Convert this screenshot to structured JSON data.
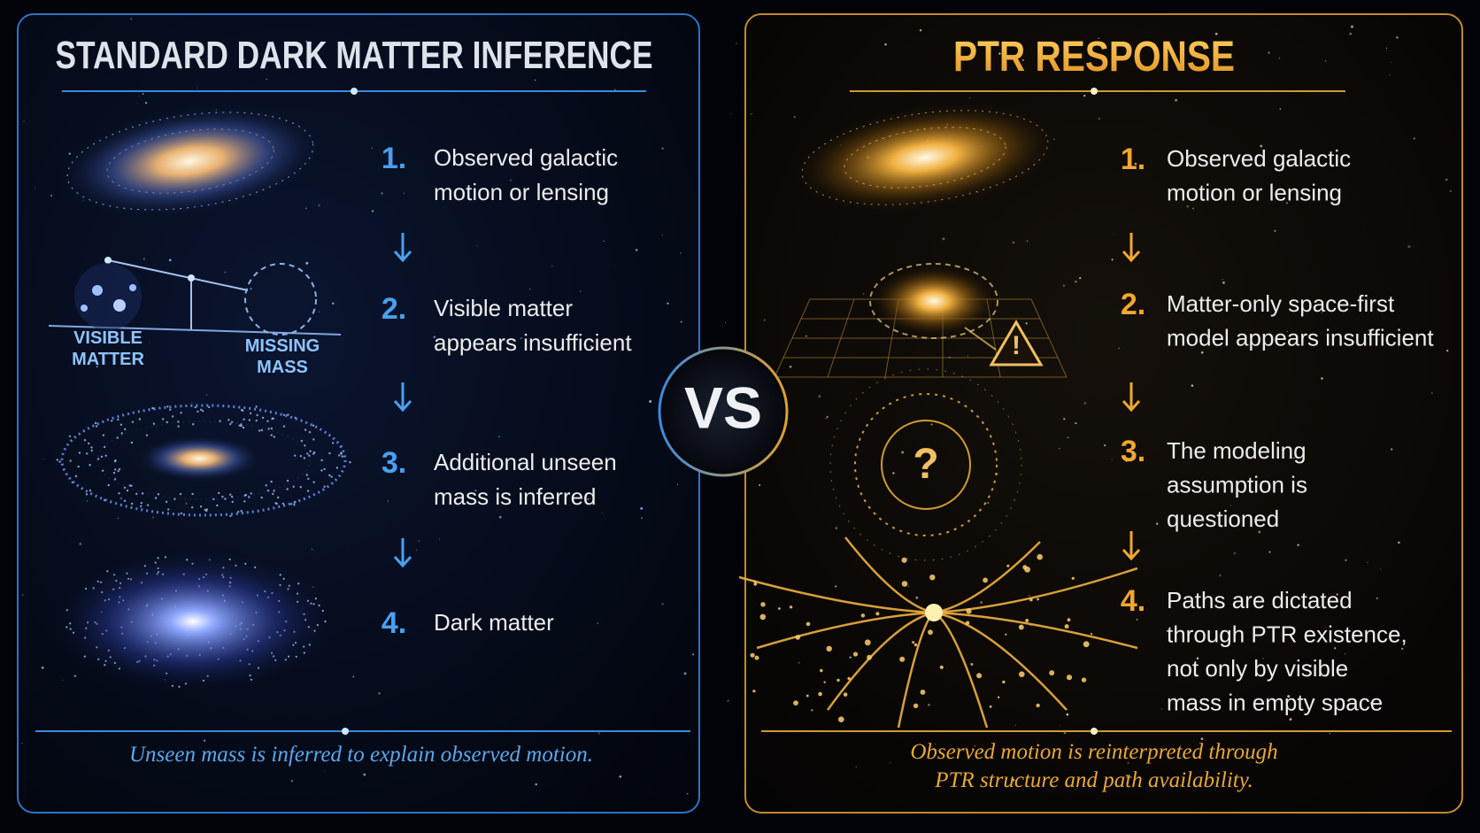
{
  "vs": "VS",
  "left_panel": {
    "title": "STANDARD DARK MATTER INFERENCE",
    "steps": [
      {
        "number": "1.",
        "lines": [
          "Observed galactic",
          "motion or lensing"
        ]
      },
      {
        "number": "2.",
        "lines": [
          "Visible matter",
          "appears insufficient"
        ]
      },
      {
        "number": "3.",
        "lines": [
          "Additional unseen",
          "mass is inferred"
        ]
      },
      {
        "number": "4.",
        "lines": [
          "Dark matter"
        ]
      }
    ],
    "illustration_labels": [
      {
        "lines": [
          "VISIBLE",
          "MATTER"
        ]
      },
      {
        "lines": [
          "MISSING",
          "MASS"
        ]
      }
    ],
    "caption": {
      "lines": [
        "Unseen mass is inferred to explain observed motion."
      ]
    }
  },
  "right_panel": {
    "title": "PTR RESPONSE",
    "steps": [
      {
        "number": "1.",
        "lines": [
          "Observed galactic",
          "motion or lensing"
        ]
      },
      {
        "number": "2.",
        "lines": [
          "Matter-only space-first",
          "model appears insufficient"
        ]
      },
      {
        "number": "3.",
        "lines": [
          "The modeling",
          "assumption is",
          "questioned"
        ]
      },
      {
        "number": "4.",
        "lines": [
          "Paths are dictated",
          "through PTR existence,",
          "not only by visible",
          "mass in empty space"
        ]
      }
    ],
    "icons": {
      "warning": "!",
      "question": "?"
    },
    "caption": {
      "lines": [
        "Observed motion is reinterpreted through",
        "PTR structure and path availability."
      ]
    }
  }
}
